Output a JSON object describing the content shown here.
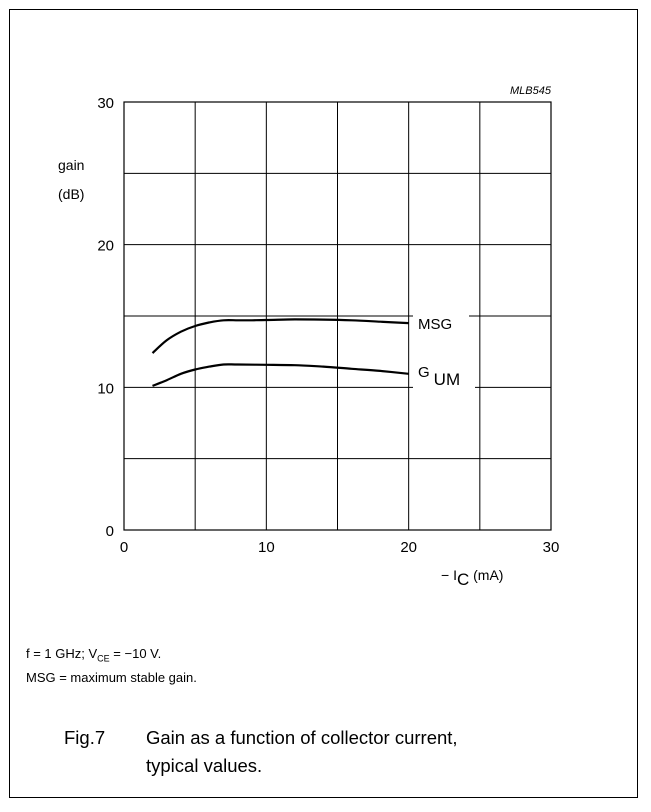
{
  "figure_code": "MLB545",
  "chart_data": {
    "type": "line",
    "ylabel_line1": "gain",
    "ylabel_line2": "(dB)",
    "xlabel_prefix": "− I",
    "xlabel_sub": "C",
    "xlabel_suffix": "(mA)",
    "xlim": [
      0,
      30
    ],
    "ylim": [
      0,
      30
    ],
    "x_ticks": [
      0,
      10,
      20,
      30
    ],
    "y_ticks": [
      0,
      10,
      20,
      30
    ],
    "grid": true,
    "series": [
      {
        "name": "MSG",
        "x": [
          2,
          3,
          4,
          5,
          6,
          7,
          8,
          9,
          10,
          12,
          14,
          16,
          18,
          20
        ],
        "y": [
          12.4,
          13.3,
          13.9,
          14.3,
          14.55,
          14.7,
          14.7,
          14.7,
          14.72,
          14.76,
          14.75,
          14.7,
          14.6,
          14.5
        ]
      },
      {
        "name": "G",
        "name_sub": "UM",
        "x": [
          2,
          3,
          4,
          5,
          6,
          7,
          8,
          10,
          12,
          14,
          16,
          18,
          20
        ],
        "y": [
          10.1,
          10.5,
          10.95,
          11.25,
          11.45,
          11.6,
          11.6,
          11.58,
          11.55,
          11.45,
          11.3,
          11.15,
          10.95
        ]
      }
    ]
  },
  "notes": {
    "line1_a": "f = 1 GHz; V",
    "line1_sub": "CE",
    "line1_b": " = −10 V.",
    "line2": "MSG = maximum stable gain."
  },
  "caption": {
    "fig_number": "Fig.7",
    "line1": "Gain as a function of collector current,",
    "line2": "typical values."
  }
}
